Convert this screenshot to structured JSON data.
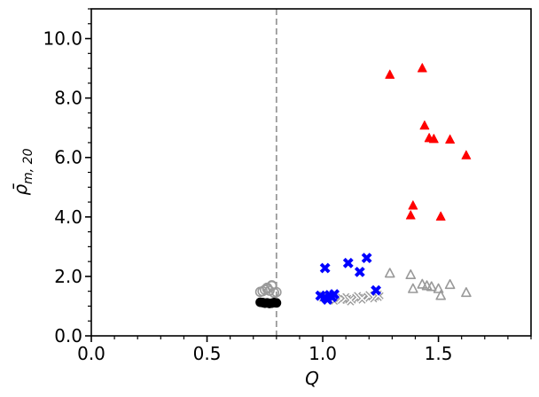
{
  "chart_data": {
    "type": "scatter",
    "title": "",
    "xlabel": "Q",
    "ylabel_main": "ρ̄",
    "ylabel_sub": "m, 20",
    "xlim": [
      0,
      1.9
    ],
    "ylim": [
      0,
      11
    ],
    "x_ticks": [
      0.0,
      0.5,
      1.0,
      1.5
    ],
    "x_tick_labels": [
      "0.0",
      "0.5",
      "1.0",
      "1.5"
    ],
    "y_ticks": [
      0,
      2,
      4,
      6,
      8,
      10
    ],
    "y_tick_labels": [
      "0.0",
      "2.0",
      "4.0",
      "6.0",
      "8.0",
      "10.0"
    ],
    "x_minor_step": 0.1,
    "y_minor_step": 0.5,
    "grid": false,
    "reference_line": {
      "x": 0.8,
      "style": "dashed",
      "color": "#999999"
    },
    "series": [
      {
        "marker": "circle",
        "filled": false,
        "color": "#999999",
        "x": [
          0.73,
          0.75,
          0.76,
          0.77,
          0.78,
          0.79,
          0.8,
          0.74,
          0.76,
          0.78
        ],
        "y": [
          1.48,
          1.55,
          1.62,
          1.52,
          1.68,
          1.45,
          1.47,
          1.5,
          1.58,
          1.7
        ]
      },
      {
        "marker": "circle",
        "filled": true,
        "color": "#000000",
        "x": [
          0.73,
          0.74,
          0.75,
          0.76,
          0.77,
          0.78,
          0.79,
          0.8
        ],
        "y": [
          1.13,
          1.12,
          1.1,
          1.11,
          1.09,
          1.1,
          1.12,
          1.11
        ]
      },
      {
        "marker": "x",
        "filled": false,
        "color": "#999999",
        "x": [
          1.0,
          1.02,
          1.05,
          1.08,
          1.1,
          1.12,
          1.15,
          1.17,
          1.2,
          1.22,
          1.24
        ],
        "y": [
          1.32,
          1.28,
          1.22,
          1.25,
          1.26,
          1.2,
          1.3,
          1.26,
          1.33,
          1.3,
          1.35
        ]
      },
      {
        "marker": "x",
        "filled": true,
        "color": "#0000ff",
        "x": [
          0.99,
          1.01,
          1.02,
          1.03,
          1.04,
          1.05,
          1.01,
          1.11,
          1.16,
          1.19,
          1.23
        ],
        "y": [
          1.35,
          1.3,
          1.22,
          1.37,
          1.3,
          1.4,
          2.28,
          2.45,
          2.15,
          2.62,
          1.53
        ]
      },
      {
        "marker": "triangle",
        "filled": false,
        "color": "#999999",
        "x": [
          1.29,
          1.38,
          1.39,
          1.43,
          1.45,
          1.47,
          1.5,
          1.51,
          1.55,
          1.62
        ],
        "y": [
          2.1,
          2.05,
          1.58,
          1.73,
          1.68,
          1.65,
          1.58,
          1.35,
          1.72,
          1.45
        ]
      },
      {
        "marker": "triangle",
        "filled": true,
        "color": "#ff0000",
        "x": [
          1.29,
          1.43,
          1.44,
          1.46,
          1.48,
          1.55,
          1.62,
          1.39,
          1.38,
          1.51
        ],
        "y": [
          8.78,
          9.0,
          7.07,
          6.65,
          6.62,
          6.6,
          6.07,
          4.38,
          4.05,
          4.01
        ]
      }
    ]
  }
}
